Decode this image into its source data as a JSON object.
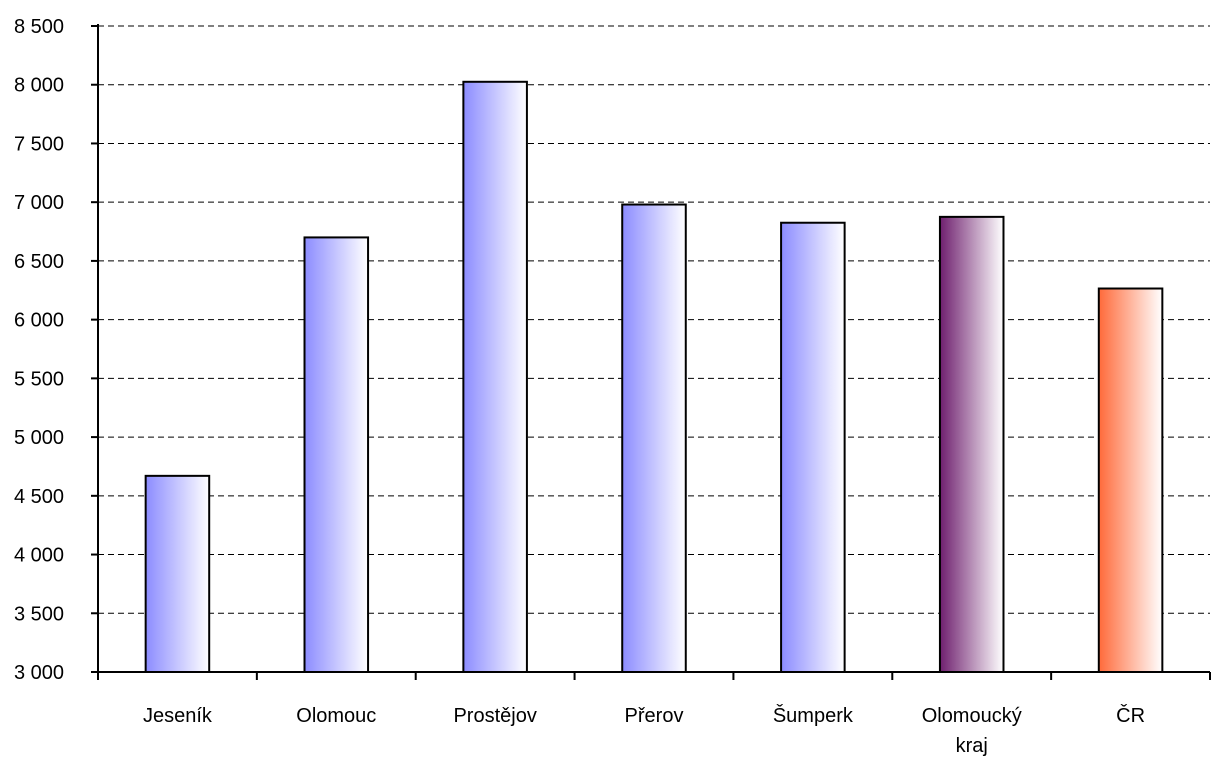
{
  "chart_data": {
    "type": "bar",
    "title": "",
    "xlabel": "",
    "ylabel": "",
    "categories": [
      "Jeseník",
      "Olomouc",
      "Prostějov",
      "Přerov",
      "Šumperk",
      "Olomoucký kraj",
      "ČR"
    ],
    "category_lines": [
      [
        "Jeseník"
      ],
      [
        "Olomouc"
      ],
      [
        "Prostějov"
      ],
      [
        "Přerov"
      ],
      [
        "Šumperk"
      ],
      [
        "Olomoucký",
        "kraj"
      ],
      [
        "ČR"
      ]
    ],
    "values": [
      4670,
      6700,
      8025,
      6980,
      6825,
      6875,
      6265
    ],
    "bar_colors": [
      "#8c8cff",
      "#8c8cff",
      "#8c8cff",
      "#8c8cff",
      "#8c8cff",
      "#6e1f6e",
      "#ff6a3a"
    ],
    "ylim": [
      3000,
      8500
    ],
    "yticks": [
      3000,
      3500,
      4000,
      4500,
      5000,
      5500,
      6000,
      6500,
      7000,
      7500,
      8000,
      8500
    ],
    "ytick_labels": [
      "3 000",
      "3 500",
      "4 000",
      "4 500",
      "5 000",
      "5 500",
      "6 000",
      "6 500",
      "7 000",
      "7 500",
      "8 000",
      "8 500"
    ],
    "grid": true,
    "grid_style": "dashed",
    "legend": "none"
  }
}
